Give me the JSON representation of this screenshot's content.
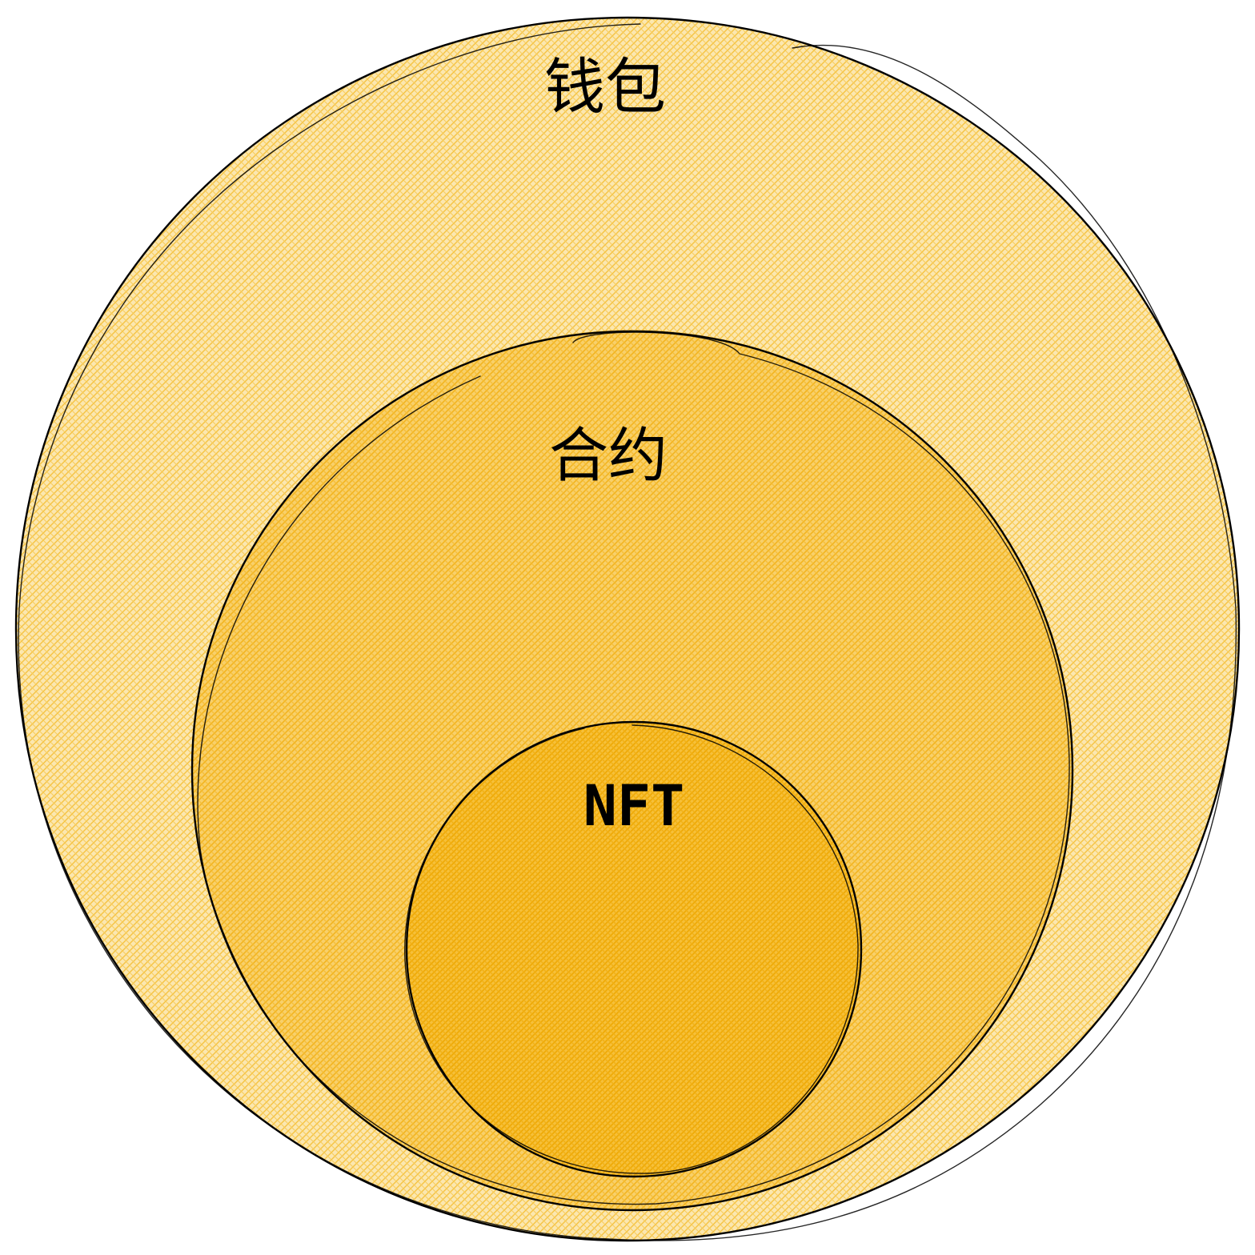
{
  "diagram": {
    "type": "nested-circles",
    "fill_color": "#FAB005",
    "stroke_color": "#000000",
    "circles": [
      {
        "id": "wallet",
        "label": "钱包"
      },
      {
        "id": "contract",
        "label": "合约"
      },
      {
        "id": "nft",
        "label": "NFT"
      }
    ]
  }
}
